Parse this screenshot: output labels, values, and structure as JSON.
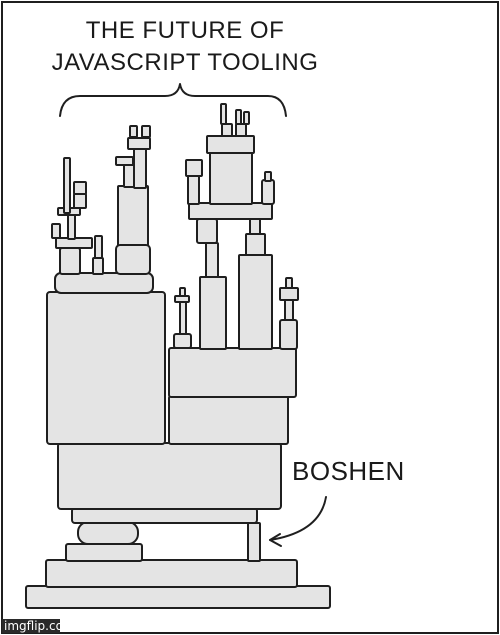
{
  "caption": {
    "title_line1": "THE FUTURE OF",
    "title_line2": "JAVASCRIPT TOOLING"
  },
  "label": {
    "text": "BOSHEN"
  },
  "watermark": {
    "text": "imgflip.com"
  },
  "colors": {
    "block_fill": "#e4e4e4",
    "ink": "#1f1f1f",
    "background": "#ffffff"
  }
}
